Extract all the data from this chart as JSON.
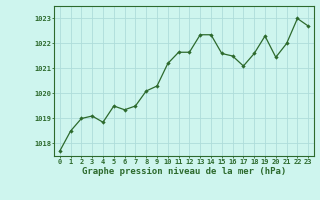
{
  "x": [
    0,
    1,
    2,
    3,
    4,
    5,
    6,
    7,
    8,
    9,
    10,
    11,
    12,
    13,
    14,
    15,
    16,
    17,
    18,
    19,
    20,
    21,
    22,
    23
  ],
  "y": [
    1017.7,
    1018.5,
    1019.0,
    1019.1,
    1018.85,
    1019.5,
    1019.35,
    1019.5,
    1020.1,
    1020.3,
    1021.2,
    1021.65,
    1021.65,
    1022.35,
    1022.35,
    1021.6,
    1021.5,
    1021.1,
    1021.6,
    1022.3,
    1021.45,
    1022.0,
    1023.0,
    1022.7
  ],
  "line_color": "#2d6a2d",
  "marker": "D",
  "marker_size": 2.2,
  "bg_color": "#cef5ee",
  "grid_color": "#aeddda",
  "ylim": [
    1017.5,
    1023.5
  ],
  "yticks": [
    1018,
    1019,
    1020,
    1021,
    1022,
    1023
  ],
  "xtick_labels": [
    "0",
    "1",
    "2",
    "3",
    "4",
    "5",
    "6",
    "7",
    "8",
    "9",
    "10",
    "11",
    "12",
    "13",
    "14",
    "15",
    "16",
    "17",
    "18",
    "19",
    "20",
    "21",
    "22",
    "23"
  ],
  "xlabel": "Graphe pression niveau de la mer (hPa)",
  "xlabel_color": "#2d6a2d",
  "tick_color": "#2d6a2d",
  "axis_color": "#2d6a2d",
  "tick_fontsize": 5.0,
  "label_fontsize": 6.5
}
